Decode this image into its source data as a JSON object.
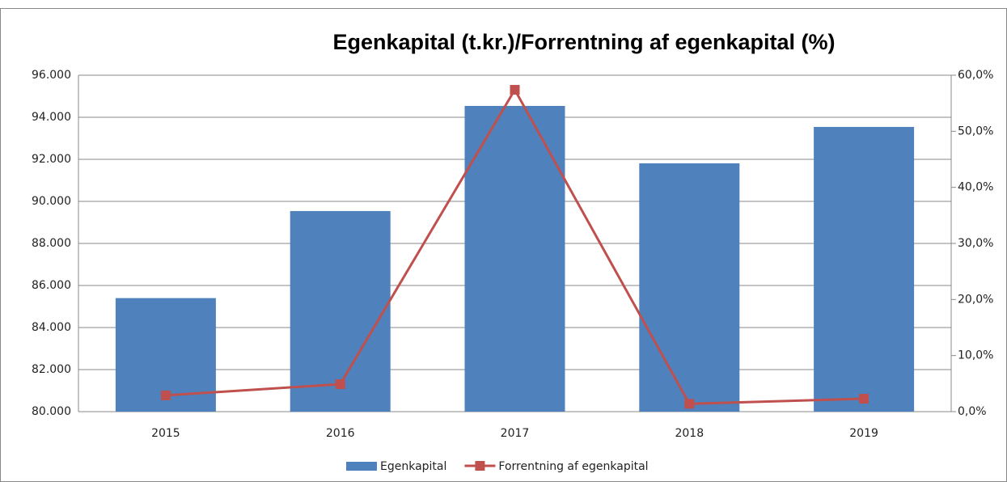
{
  "chart_data": {
    "type": "bar_line",
    "title": "Egenkapital (t.kr.)/Forrentning af egenkapital (%)",
    "categories": [
      "2015",
      "2016",
      "2017",
      "2018",
      "2019"
    ],
    "series": [
      {
        "name": "Egenkapital",
        "type": "bar",
        "color": "#4f81bd",
        "values": [
          85400,
          89540,
          94540,
          91810,
          93540
        ]
      },
      {
        "name": "Forrentning af egenkapital",
        "type": "line",
        "axis": "y2",
        "color": "#c0504d",
        "values": [
          2.9,
          4.9,
          57.4,
          1.4,
          2.3
        ]
      }
    ],
    "ylim": [
      80000,
      96000
    ],
    "yticks": [
      {
        "value": 80000,
        "label": "80.000"
      },
      {
        "value": 82000,
        "label": "82.000"
      },
      {
        "value": 84000,
        "label": "84.000"
      },
      {
        "value": 86000,
        "label": "86.000"
      },
      {
        "value": 88000,
        "label": "88.000"
      },
      {
        "value": 90000,
        "label": "90.000"
      },
      {
        "value": 92000,
        "label": "92.000"
      },
      {
        "value": 94000,
        "label": "94.000"
      },
      {
        "value": 96000,
        "label": "96.000"
      }
    ],
    "y2lim": [
      0,
      60
    ],
    "y2ticks": [
      {
        "value": 0,
        "label": "0,0%"
      },
      {
        "value": 10,
        "label": "10,0%"
      },
      {
        "value": 20,
        "label": "20,0%"
      },
      {
        "value": 30,
        "label": "30,0%"
      },
      {
        "value": 40,
        "label": "40,0%"
      },
      {
        "value": 50,
        "label": "50,0%"
      },
      {
        "value": 60,
        "label": "60,0%"
      }
    ],
    "grid": true,
    "legend": "bottom"
  }
}
